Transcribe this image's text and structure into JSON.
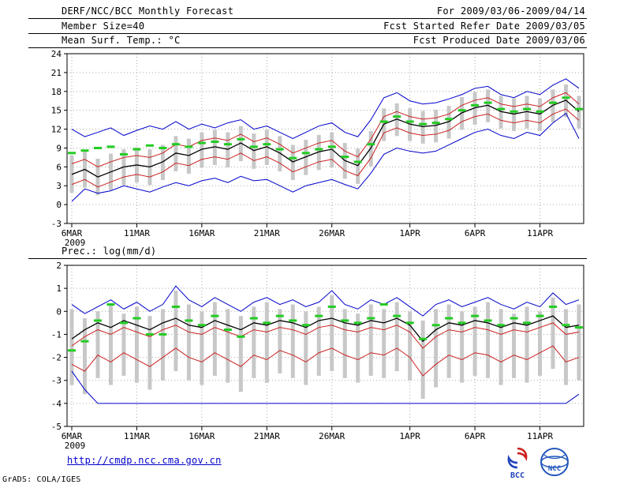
{
  "header": {
    "title": "DERF/NCC/BCC Monthly Forecast",
    "member_size": "Member Size=40",
    "temp_label": "Mean Surf. Temp.: °C",
    "for_range": "For 2009/03/06-2009/04/14",
    "refer_date": "Fcst Started Refer Date 2009/03/05",
    "produced_date": "Fcst Produced Date 2009/03/06"
  },
  "prec_label": "Prec.: log(mm/d)",
  "footer": {
    "url": "http://cmdp.ncc.cma.gov.cn",
    "credit": "GrADS: COLA/IGES",
    "bcc_label": "BCC",
    "ncc_label": "NCC"
  },
  "colors": {
    "line_blue": "#0000cc",
    "line_red": "#cc2222",
    "line_black": "#000000",
    "median_green": "#22cc22",
    "bar_gray": "#c8c8c8",
    "grid_gray": "#aaaaaa",
    "url_blue": "#0000cc"
  },
  "chart_data": [
    {
      "name": "temperature",
      "type": "line",
      "title": "Mean Surf. Temp.: °C",
      "ylim": [
        -3,
        24
      ],
      "yticks": [
        -3,
        0,
        3,
        6,
        9,
        12,
        15,
        18,
        21,
        24
      ],
      "n_points": 40,
      "xtick_labels": [
        "6MAR",
        "11MAR",
        "16MAR",
        "21MAR",
        "26MAR",
        "1APR",
        "6APR",
        "11APR"
      ],
      "xtick_positions": [
        0,
        5,
        10,
        15,
        20,
        26,
        31,
        36
      ],
      "year_label": "2009",
      "series": [
        {
          "name": "ensemble-max",
          "color": "#0000cc",
          "width": 1,
          "values": [
            12.0,
            10.8,
            11.5,
            12.2,
            11.0,
            11.8,
            12.5,
            12.0,
            13.2,
            12.0,
            12.8,
            12.2,
            13.0,
            13.5,
            12.0,
            12.5,
            11.5,
            10.5,
            11.5,
            12.5,
            13.0,
            11.5,
            10.8,
            13.5,
            17.0,
            17.8,
            16.5,
            16.0,
            16.2,
            16.8,
            17.5,
            18.5,
            18.8,
            17.5,
            17.0,
            18.0,
            17.5,
            19.0,
            20.0,
            18.5
          ]
        },
        {
          "name": "ensemble-min",
          "color": "#0000cc",
          "width": 1,
          "values": [
            0.5,
            2.5,
            1.8,
            2.2,
            3.0,
            2.5,
            2.0,
            2.8,
            3.5,
            3.0,
            3.8,
            4.2,
            3.5,
            4.5,
            3.8,
            4.0,
            3.0,
            2.0,
            3.0,
            3.5,
            4.0,
            3.2,
            2.5,
            5.0,
            8.0,
            9.0,
            8.5,
            8.2,
            8.5,
            9.5,
            10.5,
            11.5,
            12.0,
            11.0,
            10.5,
            11.5,
            11.0,
            13.0,
            14.5,
            10.5
          ]
        },
        {
          "name": "upper-quartile",
          "color": "#cc2222",
          "width": 1,
          "values": [
            6.5,
            7.2,
            6.0,
            6.8,
            7.5,
            7.8,
            7.5,
            8.2,
            9.6,
            9.2,
            10.2,
            10.6,
            10.2,
            11.2,
            10.0,
            10.6,
            9.6,
            8.2,
            9.0,
            9.8,
            10.2,
            8.5,
            7.6,
            10.4,
            14.0,
            14.8,
            14.0,
            13.6,
            13.8,
            14.4,
            15.8,
            16.6,
            17.0,
            16.0,
            15.6,
            16.0,
            15.6,
            17.0,
            17.8,
            16.0
          ]
        },
        {
          "name": "lower-quartile",
          "color": "#cc2222",
          "width": 1,
          "values": [
            3.2,
            4.0,
            2.8,
            3.6,
            4.4,
            4.8,
            4.4,
            5.2,
            6.6,
            6.2,
            7.2,
            7.6,
            7.2,
            8.2,
            7.0,
            7.6,
            6.6,
            5.2,
            6.0,
            6.8,
            7.2,
            5.4,
            4.6,
            7.4,
            11.4,
            12.2,
            11.4,
            11.0,
            11.2,
            11.8,
            13.2,
            14.0,
            14.4,
            13.4,
            13.0,
            13.4,
            13.0,
            14.4,
            15.2,
            13.4
          ]
        },
        {
          "name": "ensemble-mean",
          "color": "#000000",
          "width": 1.3,
          "values": [
            4.8,
            5.6,
            4.4,
            5.2,
            6.0,
            6.3,
            6.0,
            6.8,
            8.2,
            7.8,
            8.8,
            9.2,
            8.8,
            9.8,
            8.6,
            9.2,
            8.2,
            6.8,
            7.6,
            8.4,
            8.8,
            7.0,
            6.2,
            9.0,
            12.8,
            13.6,
            12.8,
            12.4,
            12.6,
            13.2,
            14.6,
            15.4,
            15.8,
            14.8,
            14.4,
            14.8,
            14.4,
            15.8,
            16.6,
            14.8
          ]
        }
      ],
      "median_dashes": {
        "name": "ensemble-median",
        "color": "#22cc22",
        "values": [
          8.2,
          8.6,
          9.0,
          9.2,
          8.0,
          8.8,
          9.4,
          9.0,
          9.6,
          9.2,
          9.8,
          10.0,
          9.6,
          10.4,
          9.2,
          9.6,
          8.8,
          7.4,
          8.2,
          8.8,
          9.2,
          7.6,
          6.8,
          9.6,
          13.2,
          14.0,
          13.2,
          12.8,
          13.0,
          13.6,
          15.0,
          15.8,
          16.2,
          15.2,
          14.8,
          15.2,
          14.8,
          16.2,
          17.0,
          15.2
        ]
      },
      "bars": {
        "name": "ensemble-spread",
        "color": "#c8c8c8",
        "low": [
          1.9,
          2.7,
          1.5,
          2.3,
          3.1,
          3.5,
          3.1,
          3.9,
          5.3,
          4.9,
          5.9,
          6.3,
          5.9,
          6.9,
          5.7,
          6.3,
          5.3,
          3.9,
          4.7,
          5.5,
          5.9,
          4.1,
          3.3,
          6.1,
          10.1,
          10.9,
          10.1,
          9.7,
          9.9,
          10.5,
          11.9,
          12.7,
          13.1,
          12.1,
          11.7,
          12.1,
          11.7,
          13.1,
          13.9,
          12.1
        ],
        "high": [
          7.8,
          8.5,
          7.3,
          8.1,
          8.8,
          9.1,
          8.8,
          9.5,
          10.9,
          10.5,
          11.5,
          11.9,
          11.5,
          12.5,
          11.3,
          11.9,
          10.9,
          9.5,
          10.3,
          11.1,
          11.5,
          9.8,
          8.9,
          11.7,
          15.3,
          16.1,
          15.3,
          14.9,
          15.1,
          15.7,
          17.1,
          17.9,
          18.3,
          17.3,
          16.9,
          17.3,
          16.9,
          18.3,
          19.1,
          17.3
        ]
      }
    },
    {
      "name": "precipitation",
      "type": "line",
      "title": "Prec.: log(mm/d)",
      "ylim": [
        -5,
        2
      ],
      "yticks": [
        -5,
        -4,
        -3,
        -2,
        -1,
        0,
        1,
        2
      ],
      "n_points": 40,
      "xtick_labels": [
        "6MAR",
        "11MAR",
        "16MAR",
        "21MAR",
        "26MAR",
        "1APR",
        "6APR",
        "11APR"
      ],
      "xtick_positions": [
        0,
        5,
        10,
        15,
        20,
        26,
        31,
        36
      ],
      "year_label": "2009",
      "series": [
        {
          "name": "ensemble-max",
          "color": "#0000cc",
          "width": 1,
          "values": [
            0.3,
            -0.1,
            0.2,
            0.5,
            0.1,
            0.4,
            0.0,
            0.3,
            1.1,
            0.5,
            0.2,
            0.6,
            0.3,
            0.0,
            0.4,
            0.6,
            0.3,
            0.5,
            0.2,
            0.4,
            0.9,
            0.3,
            0.1,
            0.5,
            0.3,
            0.6,
            0.2,
            -0.2,
            0.3,
            0.5,
            0.2,
            0.4,
            0.6,
            0.3,
            0.1,
            0.4,
            0.2,
            0.8,
            0.3,
            0.5
          ]
        },
        {
          "name": "ensemble-min",
          "color": "#0000cc",
          "width": 1,
          "values": [
            -2.6,
            -3.4,
            -4,
            -4,
            -4,
            -4,
            -4,
            -4,
            -4,
            -4,
            -4,
            -4,
            -4,
            -4,
            -4,
            -4,
            -4,
            -4,
            -4,
            -4,
            -4,
            -4,
            -4,
            -4,
            -4,
            -4,
            -4,
            -4,
            -4,
            -4,
            -4,
            -4,
            -4,
            -4,
            -4,
            -4,
            -4,
            -4,
            -4,
            -3.6
          ]
        },
        {
          "name": "upper-quartile",
          "color": "#cc2222",
          "width": 1,
          "values": [
            -1.5,
            -1.1,
            -0.8,
            -1.0,
            -0.7,
            -0.9,
            -1.1,
            -0.8,
            -0.6,
            -0.9,
            -1.0,
            -0.7,
            -0.9,
            -1.1,
            -0.8,
            -0.9,
            -0.7,
            -0.8,
            -1.0,
            -0.7,
            -0.6,
            -0.8,
            -0.9,
            -0.7,
            -0.8,
            -0.6,
            -0.9,
            -1.6,
            -1.1,
            -0.8,
            -0.9,
            -0.7,
            -0.8,
            -1.0,
            -0.8,
            -0.9,
            -0.7,
            -0.5,
            -1.0,
            -0.9
          ]
        },
        {
          "name": "lower-quartile",
          "color": "#cc2222",
          "width": 1,
          "values": [
            -2.3,
            -2.6,
            -1.9,
            -2.2,
            -1.8,
            -2.1,
            -2.4,
            -2.0,
            -1.6,
            -2.0,
            -2.2,
            -1.8,
            -2.1,
            -2.4,
            -1.9,
            -2.1,
            -1.7,
            -1.9,
            -2.2,
            -1.8,
            -1.6,
            -1.9,
            -2.1,
            -1.8,
            -1.9,
            -1.6,
            -2.0,
            -2.8,
            -2.3,
            -1.9,
            -2.1,
            -1.8,
            -1.9,
            -2.2,
            -1.9,
            -2.1,
            -1.8,
            -1.5,
            -2.2,
            -2.0
          ]
        },
        {
          "name": "ensemble-mean",
          "color": "#000000",
          "width": 1.3,
          "values": [
            -1.2,
            -0.8,
            -0.5,
            -0.7,
            -0.4,
            -0.6,
            -0.8,
            -0.5,
            -0.3,
            -0.6,
            -0.7,
            -0.4,
            -0.6,
            -0.8,
            -0.5,
            -0.6,
            -0.4,
            -0.5,
            -0.7,
            -0.4,
            -0.3,
            -0.5,
            -0.6,
            -0.4,
            -0.5,
            -0.3,
            -0.6,
            -1.3,
            -0.8,
            -0.5,
            -0.6,
            -0.4,
            -0.5,
            -0.7,
            -0.5,
            -0.6,
            -0.4,
            -0.2,
            -0.7,
            -0.6
          ]
        }
      ],
      "median_dashes": {
        "name": "ensemble-median",
        "color": "#22cc22",
        "values": [
          -1.7,
          -1.3,
          -0.4,
          0.3,
          -0.5,
          -0.3,
          -1.0,
          -1.0,
          0.2,
          -0.4,
          -0.6,
          -0.2,
          -0.8,
          -1.1,
          -0.3,
          -0.5,
          -0.2,
          -0.4,
          -0.6,
          -0.2,
          0.2,
          -0.4,
          -0.5,
          -0.3,
          0.3,
          -0.2,
          -0.5,
          -1.2,
          -0.6,
          -0.3,
          -0.5,
          -0.2,
          -0.4,
          -0.6,
          -0.3,
          -0.5,
          -0.2,
          0.2,
          -0.6,
          -0.7
        ]
      },
      "bars": {
        "name": "ensemble-spread",
        "color": "#c8c8c8",
        "low": [
          -3.2,
          -3.6,
          -2.9,
          -3.2,
          -2.8,
          -3.1,
          -3.4,
          -3.0,
          -2.6,
          -3.0,
          -3.2,
          -2.8,
          -3.1,
          -3.5,
          -2.9,
          -3.1,
          -2.7,
          -2.9,
          -3.2,
          -2.8,
          -2.6,
          -2.9,
          -3.1,
          -2.8,
          -2.9,
          -2.6,
          -3.0,
          -3.8,
          -3.3,
          -2.9,
          -3.1,
          -2.8,
          -2.9,
          -3.2,
          -2.9,
          -3.1,
          -2.8,
          -2.5,
          -3.2,
          -3.0
        ],
        "high": [
          0.1,
          -0.3,
          0.0,
          0.3,
          -0.1,
          0.2,
          -0.2,
          0.1,
          0.9,
          0.3,
          0.0,
          0.4,
          0.1,
          -0.2,
          0.2,
          0.4,
          0.1,
          0.3,
          0.0,
          0.2,
          0.7,
          0.1,
          -0.1,
          0.3,
          0.1,
          0.4,
          0.0,
          -0.4,
          0.1,
          0.3,
          0.0,
          0.2,
          0.4,
          0.1,
          -0.1,
          0.2,
          0.0,
          0.6,
          0.1,
          0.3
        ]
      }
    }
  ]
}
